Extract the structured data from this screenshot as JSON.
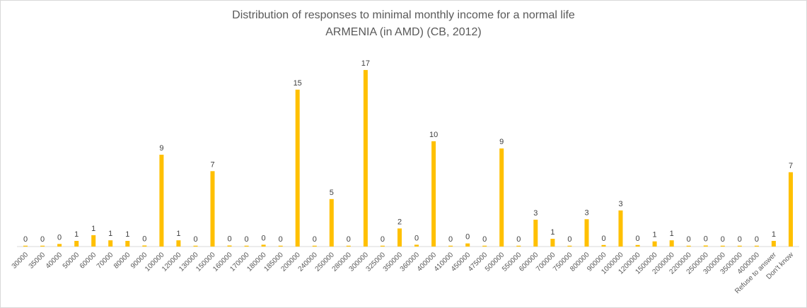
{
  "chart_data": {
    "type": "bar",
    "title": "Distribution of responses to minimal monthly income for a normal life",
    "subtitle": "ARMENIA (in AMD) (CB, 2012)",
    "categories": [
      "30000",
      "35000",
      "40000",
      "50000",
      "60000",
      "70000",
      "80000",
      "90000",
      "100000",
      "120000",
      "130000",
      "150000",
      "160000",
      "170000",
      "180000",
      "185000",
      "200000",
      "240000",
      "250000",
      "280000",
      "300000",
      "325000",
      "350000",
      "360000",
      "400000",
      "410000",
      "450000",
      "475000",
      "500000",
      "550000",
      "600000",
      "700000",
      "750000",
      "800000",
      "900000",
      "1000000",
      "1200000",
      "1500000",
      "2000000",
      "2200000",
      "2500000",
      "3000000",
      "3500000",
      "4000000",
      "Refuse to answer",
      "Don't know"
    ],
    "values": [
      0,
      0,
      0,
      1,
      1,
      1,
      1,
      0,
      9,
      1,
      0,
      7,
      0,
      0,
      0,
      0,
      15,
      0,
      5,
      0,
      17,
      0,
      2,
      0,
      10,
      0,
      0,
      0,
      9,
      0,
      3,
      1,
      0,
      3,
      0,
      3,
      0,
      1,
      1,
      0,
      0,
      0,
      0,
      0,
      1,
      7
    ],
    "bar_heights": [
      0.08,
      0.08,
      0.25,
      0.55,
      1.1,
      0.6,
      0.55,
      0.1,
      8.9,
      0.6,
      0.08,
      7.3,
      0.1,
      0.08,
      0.18,
      0.08,
      15.2,
      0.08,
      4.6,
      0.08,
      17.1,
      0.08,
      1.75,
      0.18,
      10.2,
      0.08,
      0.3,
      0.08,
      9.5,
      0.08,
      2.6,
      0.75,
      0.08,
      2.65,
      0.15,
      3.5,
      0.15,
      0.5,
      0.6,
      0.08,
      0.1,
      0.08,
      0.08,
      0.08,
      0.55,
      7.2
    ],
    "ylim": [
      0,
      18
    ],
    "bar_color": "#ffc000",
    "grid": false
  }
}
